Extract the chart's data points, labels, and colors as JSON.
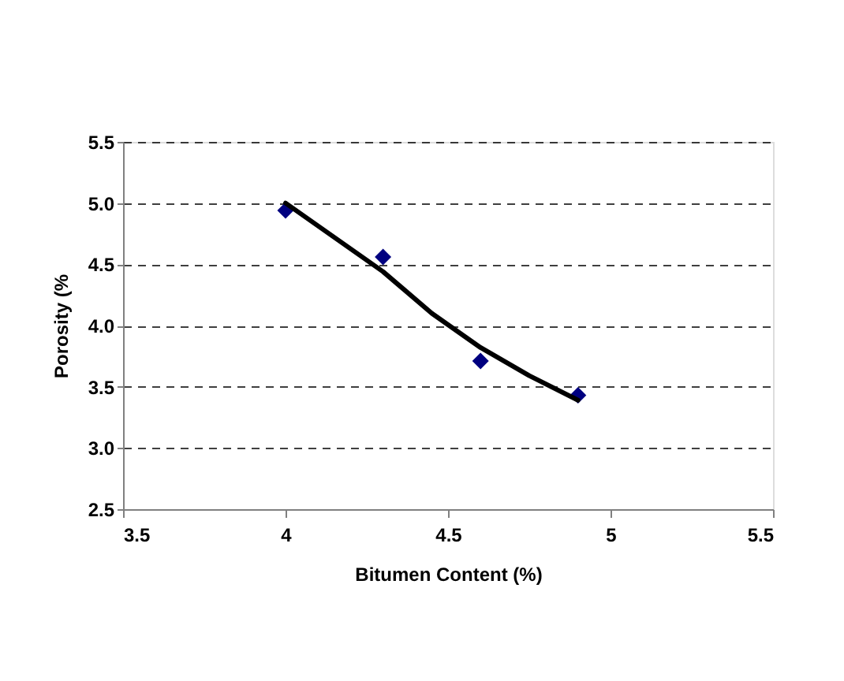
{
  "chart_data": {
    "type": "scatter",
    "xlabel": "Bitumen Content (%)",
    "ylabel": "Porosity (%",
    "series": [
      {
        "type": "scatter",
        "color": "#000080",
        "marker": "diamond",
        "x": [
          4.0,
          4.3,
          4.6,
          4.9
        ],
        "values": [
          4.94,
          4.56,
          3.71,
          3.43
        ]
      },
      {
        "type": "line",
        "color": "#000000",
        "line_style": "solid",
        "marker": "none",
        "x": [
          4.0,
          4.15,
          4.3,
          4.45,
          4.6,
          4.75,
          4.9
        ],
        "values": [
          5.0,
          4.72,
          4.44,
          4.1,
          3.82,
          3.59,
          3.39
        ]
      }
    ],
    "xlim": [
      3.5,
      5.5
    ],
    "xticks": [
      {
        "value": 3.5,
        "label": "3.5"
      },
      {
        "value": 4,
        "label": "4"
      },
      {
        "value": 4.5,
        "label": "4.5"
      },
      {
        "value": 5,
        "label": "5"
      },
      {
        "value": 5.5,
        "label": "5.5"
      }
    ],
    "ylim": [
      2.5,
      5.5
    ],
    "yticks": [
      {
        "value": 2.5,
        "label": "2.5"
      },
      {
        "value": 3,
        "label": "3.0"
      },
      {
        "value": 3.5,
        "label": "3.5"
      },
      {
        "value": 4,
        "label": "4.0"
      },
      {
        "value": 4.5,
        "label": "4.5"
      },
      {
        "value": 5,
        "label": "5.0"
      },
      {
        "value": 5.5,
        "label": "5.5"
      }
    ],
    "grid": "y"
  }
}
